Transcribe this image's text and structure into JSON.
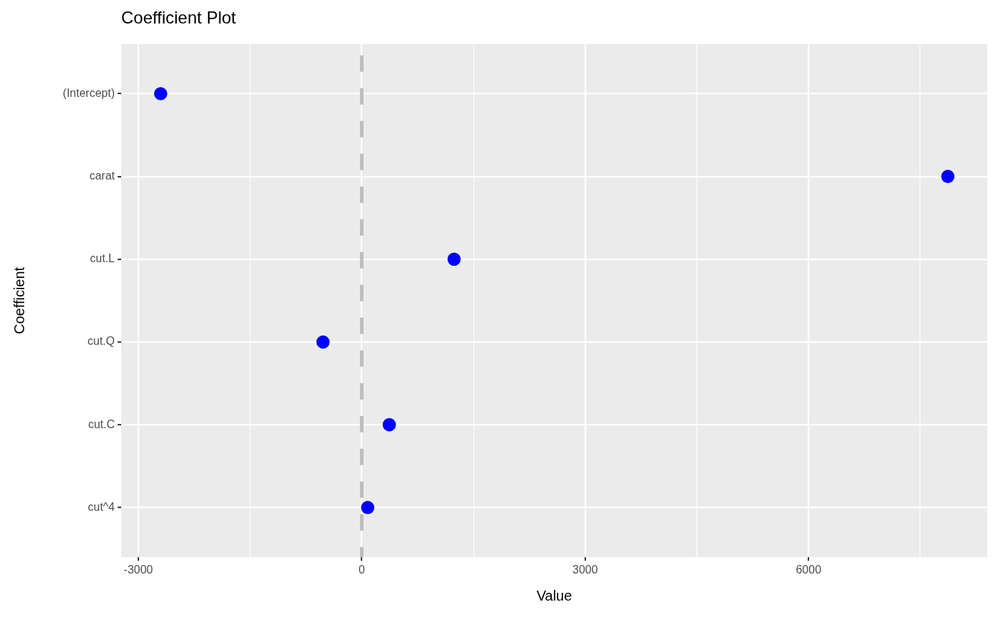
{
  "chart_data": {
    "type": "scatter",
    "title": "Coefficient Plot",
    "xlabel": "Value",
    "ylabel": "Coefficient",
    "orientation": "horizontal",
    "categories": [
      "(Intercept)",
      "carat",
      "cut.L",
      "cut.Q",
      "cut.C",
      "cut^4"
    ],
    "values": [
      -2700,
      7870,
      1240,
      -520,
      370,
      80
    ],
    "color": "#0000ff",
    "xlim": [
      -3230,
      8400
    ],
    "xticks": [
      -3000,
      {
        "value": -1500,
        "label": null
      },
      0,
      {
        "value": 1500,
        "label": null
      },
      3000,
      {
        "value": 4500,
        "label": null
      },
      6000,
      {
        "value": 7500,
        "label": null
      }
    ],
    "grid": true,
    "marker": "circle",
    "ref_lines": [
      {
        "axis": "x",
        "value": 0,
        "color": "#bebebe",
        "line_style": "dashed"
      }
    ]
  }
}
